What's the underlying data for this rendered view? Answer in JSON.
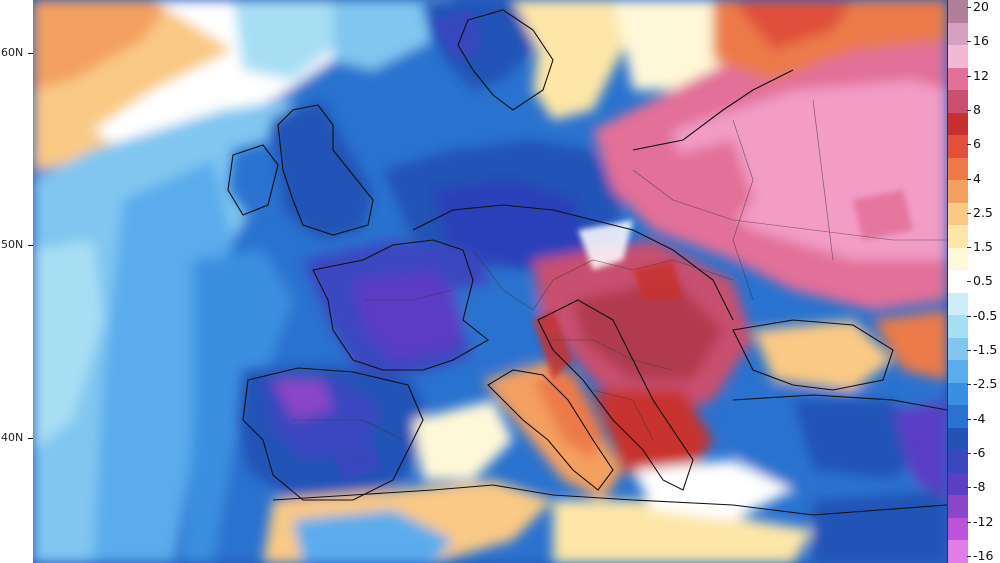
{
  "map": {
    "region": "Europe",
    "palette": [
      "#e07de8",
      "#bd54d8",
      "#8a45c8",
      "#5a3ec4",
      "#3a47c0",
      "#2453b6",
      "#2a72cf",
      "#3a8fe0",
      "#5aacec",
      "#80c6f0",
      "#a8def4",
      "#cdeef7",
      "#ffffff",
      "#fff8d8",
      "#fde6a8",
      "#f9c985",
      "#f4a060",
      "#ec7a48",
      "#e0503a",
      "#c8302f",
      "#b03a50",
      "#c85070",
      "#e27098",
      "#f29cc6",
      "#f2b8d6",
      "#d6a0c0",
      "#b08098"
    ]
  },
  "lat_axis": {
    "labels": [
      "60N",
      "50N",
      "40N"
    ]
  },
  "legend": {
    "labels": [
      "20",
      "16",
      "12",
      "8",
      "6",
      "4",
      "2.5",
      "1.5",
      "0.5",
      "-0.5",
      "-1.5",
      "-2.5",
      "-4",
      "-6",
      "-8",
      "-12",
      "-16"
    ],
    "colors": [
      "#b08098",
      "#d6a0c0",
      "#f2b8d6",
      "#e27098",
      "#c85070",
      "#c8302f",
      "#e0503a",
      "#ec7a48",
      "#f4a060",
      "#f9c985",
      "#fde6a8",
      "#fff8d8",
      "#ffffff",
      "#cdeef7",
      "#a8def4",
      "#80c6f0",
      "#5aacec",
      "#3a8fe0",
      "#2a72cf",
      "#2453b6",
      "#3a47c0",
      "#5a3ec4",
      "#8a45c8",
      "#bd54d8",
      "#e07de8"
    ]
  }
}
